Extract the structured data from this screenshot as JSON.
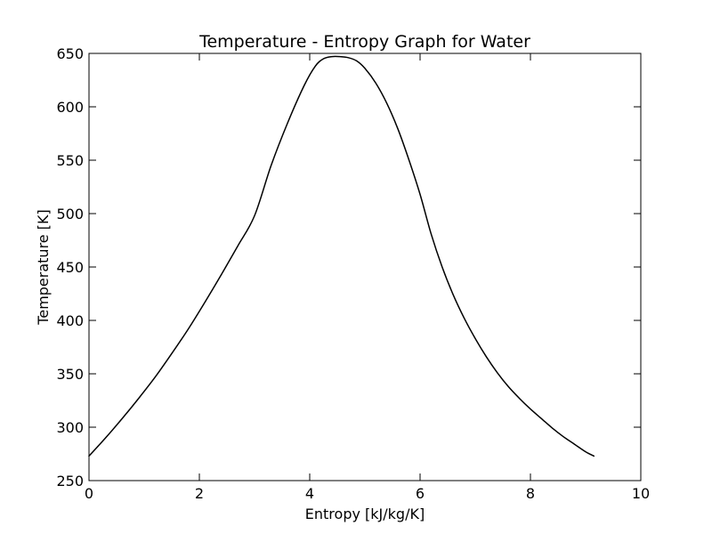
{
  "chart_data": {
    "type": "line",
    "title": "Temperature - Entropy Graph for Water",
    "xlabel": "Entropy [kJ/kg/K]",
    "ylabel": "Temperature [K]",
    "xlim": [
      0,
      10
    ],
    "ylim": [
      250,
      650
    ],
    "xticks": [
      0,
      2,
      4,
      6,
      8,
      10
    ],
    "yticks": [
      250,
      300,
      350,
      400,
      450,
      500,
      550,
      600,
      650
    ],
    "xtick_labels": [
      "0",
      "2",
      "4",
      "6",
      "8",
      "10"
    ],
    "ytick_labels": [
      "250",
      "300",
      "350",
      "400",
      "450",
      "500",
      "550",
      "600",
      "650"
    ],
    "grid": false,
    "line_color": "#000000",
    "series": [
      {
        "x": [
          0.0,
          0.3,
          0.6,
          0.9,
          1.2,
          1.5,
          1.8,
          2.1,
          2.4,
          2.7,
          3.0,
          3.3,
          3.6,
          3.9,
          4.1,
          4.25,
          4.4,
          4.55,
          4.7,
          4.85,
          5.0,
          5.2,
          5.4,
          5.6,
          5.8,
          6.0,
          6.2,
          6.4,
          6.6,
          6.8,
          7.0,
          7.2,
          7.4,
          7.6,
          7.8,
          8.0,
          8.2,
          8.4,
          8.6,
          8.8,
          9.0,
          9.15
        ],
        "y": [
          273,
          290,
          308,
          327,
          347,
          369,
          392,
          417,
          443,
          470,
          498,
          545,
          585,
          620,
          638,
          645,
          647,
          647,
          646,
          643,
          636,
          622,
          603,
          579,
          550,
          518,
          481,
          450,
          424,
          402,
          383,
          366,
          351,
          338,
          327,
          317,
          308,
          299,
          291,
          284,
          277,
          273
        ]
      }
    ]
  }
}
